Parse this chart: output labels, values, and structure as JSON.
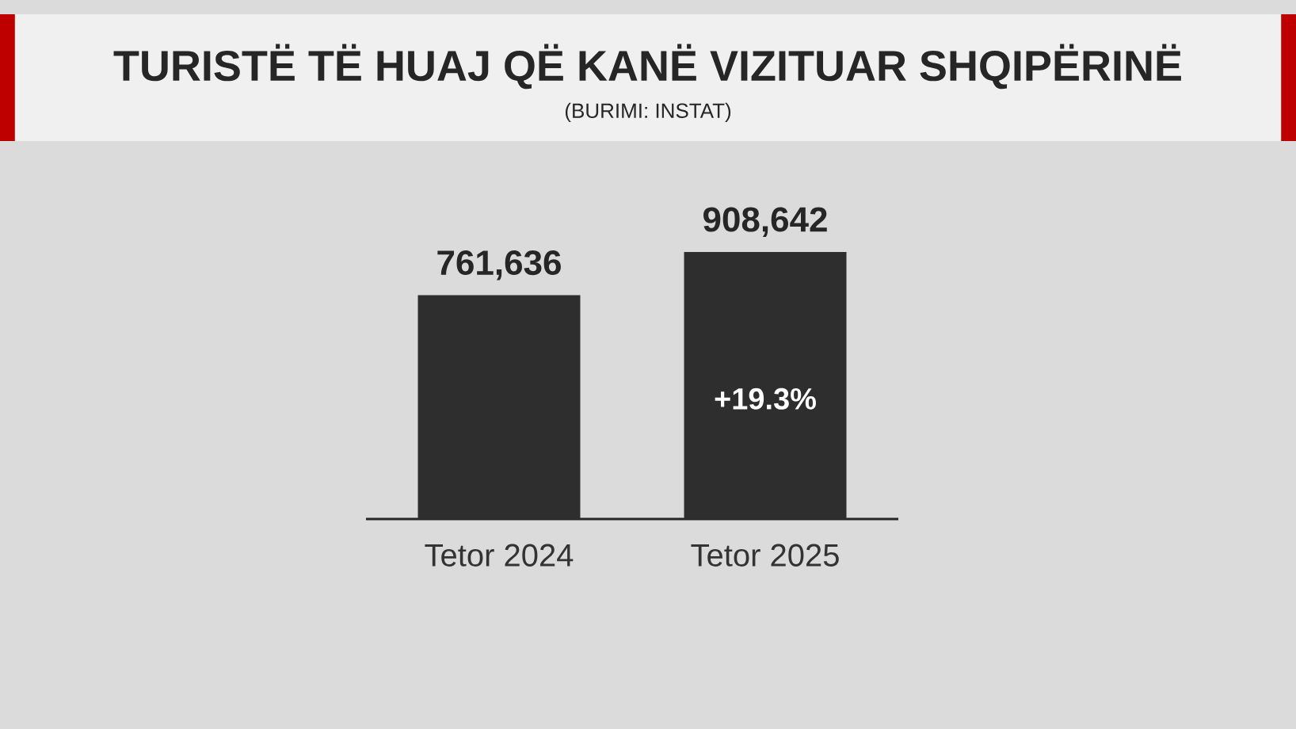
{
  "chart_data": {
    "type": "bar",
    "title": "TURISTË TË HUAJ QË KANË VIZITUAR SHQIPËRINË",
    "subtitle": "(BURIMI: INSTAT)",
    "categories": [
      "Tetor 2024",
      "Tetor 2025"
    ],
    "values": [
      761636,
      908642
    ],
    "value_labels": [
      "761,636",
      "908,642"
    ],
    "color": "#2e2e2e",
    "annotations": [
      "+19.3%"
    ]
  }
}
